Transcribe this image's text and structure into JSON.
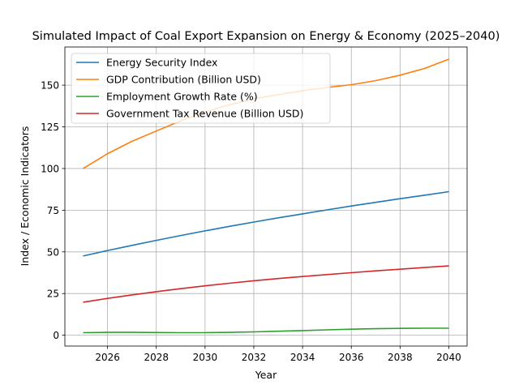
{
  "chart_data": {
    "type": "line",
    "title": "Simulated Impact of Coal Export Expansion on Energy & Economy (2025–2040)",
    "xlabel": "Year",
    "ylabel": "Index / Economic Indicators",
    "x": [
      2025,
      2026,
      2027,
      2028,
      2029,
      2030,
      2031,
      2032,
      2033,
      2034,
      2035,
      2036,
      2037,
      2038,
      2039,
      2040
    ],
    "xlim": [
      2024.25,
      2040.75
    ],
    "ylim": [
      -6.5,
      172.9
    ],
    "xticks": [
      2026,
      2028,
      2030,
      2032,
      2034,
      2036,
      2038,
      2040
    ],
    "xtick_labels": [
      "2026",
      "2028",
      "2030",
      "2032",
      "2034",
      "2036",
      "2038",
      "2040"
    ],
    "yticks": [
      0,
      25,
      50,
      75,
      100,
      125,
      150
    ],
    "ytick_labels": [
      "0",
      "25",
      "50",
      "75",
      "100",
      "125",
      "150"
    ],
    "grid": true,
    "legend_position": "top-left",
    "series": [
      {
        "name": "Energy Security Index",
        "color": "#1f77b4",
        "values": [
          47.5,
          50.8,
          53.9,
          56.9,
          59.8,
          62.6,
          65.3,
          67.9,
          70.4,
          72.8,
          75.2,
          77.5,
          79.7,
          81.9,
          84.0,
          86.1
        ]
      },
      {
        "name": "GDP Contribution (Billion USD)",
        "color": "#ff7f0e",
        "values": [
          100.0,
          108.9,
          116.3,
          122.5,
          128.6,
          134.0,
          138.2,
          141.8,
          144.3,
          146.7,
          148.6,
          150.3,
          152.7,
          156.0,
          160.0,
          165.6
        ]
      },
      {
        "name": "Employment Growth Rate (%)",
        "color": "#2ca02c",
        "values": [
          1.5,
          1.7,
          1.7,
          1.6,
          1.5,
          1.5,
          1.7,
          2.0,
          2.4,
          2.8,
          3.2,
          3.6,
          3.9,
          4.1,
          4.2,
          4.2
        ]
      },
      {
        "name": "Government Tax Revenue (Billion USD)",
        "color": "#d62728",
        "values": [
          19.8,
          22.1,
          24.2,
          26.1,
          27.9,
          29.6,
          31.2,
          32.7,
          34.0,
          35.2,
          36.4,
          37.5,
          38.6,
          39.6,
          40.6,
          41.6
        ]
      }
    ]
  }
}
